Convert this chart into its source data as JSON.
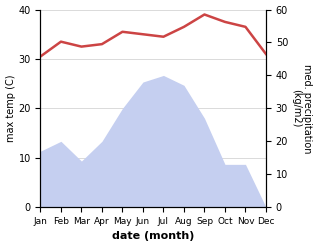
{
  "months": [
    "Jan",
    "Feb",
    "Mar",
    "Apr",
    "May",
    "Jun",
    "Jul",
    "Aug",
    "Sep",
    "Oct",
    "Nov",
    "Dec"
  ],
  "temperature": [
    30.5,
    33.5,
    32.5,
    33.0,
    35.5,
    35.0,
    34.5,
    36.5,
    39.0,
    37.5,
    36.5,
    31.0
  ],
  "precipitation": [
    17,
    20,
    14,
    20,
    30,
    38,
    40,
    37,
    27,
    13,
    13,
    0
  ],
  "temp_color": "#cc4444",
  "precip_fill_color": "#c5cff0",
  "left_ylabel": "max temp (C)",
  "right_ylabel": "med. precipitation\n(kg/m2)",
  "xlabel": "date (month)",
  "left_ylim": [
    0,
    40
  ],
  "right_ylim": [
    0,
    60
  ],
  "left_yticks": [
    0,
    10,
    20,
    30,
    40
  ],
  "right_yticks": [
    0,
    10,
    20,
    30,
    40,
    50,
    60
  ],
  "background_color": "#ffffff",
  "grid_color": "#cccccc"
}
